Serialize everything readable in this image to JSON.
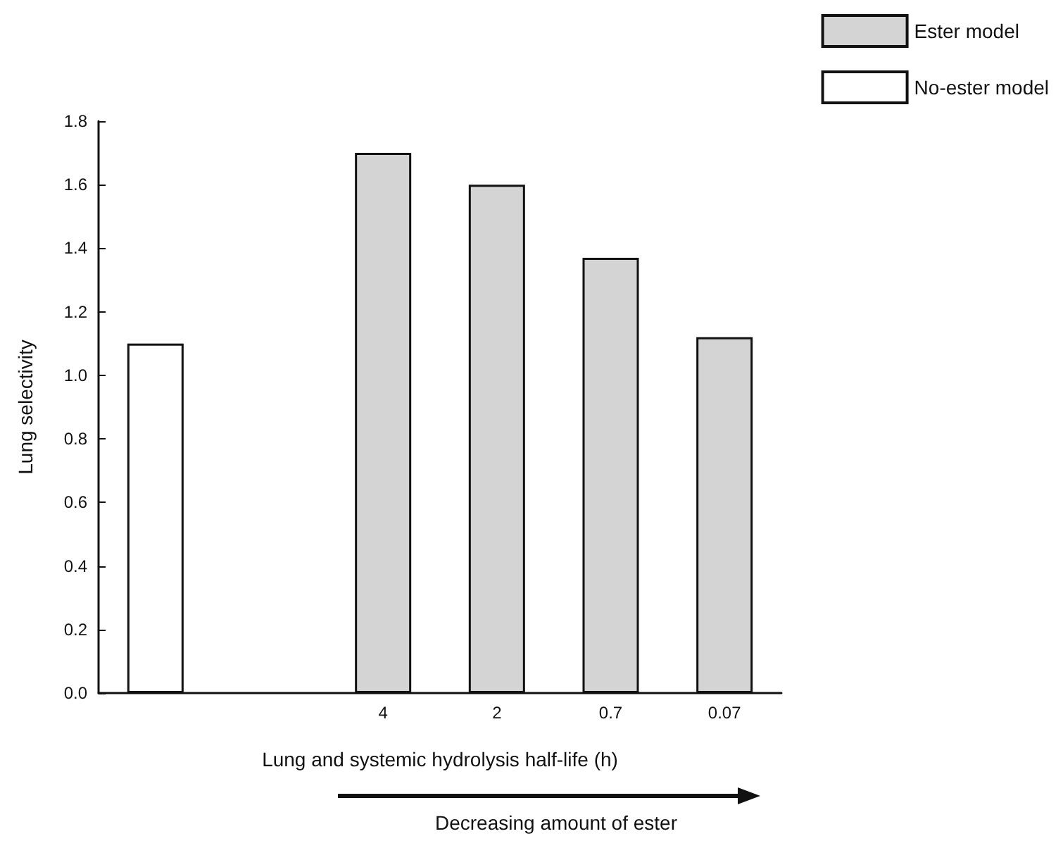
{
  "chart_data": {
    "type": "bar",
    "ylabel": "Lung selectivity",
    "xlabel": "Lung and systemic hydrolysis half-life (h)",
    "categories": [
      null,
      null,
      "4",
      "2",
      "0.7",
      "0.07"
    ],
    "series": [
      {
        "name": "Ester model",
        "color": "#d4d4d4",
        "values": [
          null,
          null,
          1.7,
          1.6,
          1.37,
          1.12
        ]
      },
      {
        "name": "No-ester model",
        "color": "#ffffff",
        "values": [
          1.1,
          null,
          null,
          null,
          null,
          null
        ]
      }
    ],
    "ylim": [
      0,
      1.8
    ],
    "yticks": [
      {
        "value": 0,
        "label": "0.0"
      },
      {
        "value": 0.2,
        "label": "0.2"
      },
      {
        "value": 0.4,
        "label": "0.4"
      },
      {
        "value": 0.6,
        "label": "0.6"
      },
      {
        "value": 0.8,
        "label": "0.8"
      },
      {
        "value": 1,
        "label": "1.0"
      },
      {
        "value": 1.2,
        "label": "1.2"
      },
      {
        "value": 1.4,
        "label": "1.4"
      },
      {
        "value": 1.6,
        "label": "1.6"
      },
      {
        "value": 1.8,
        "label": "1.8"
      }
    ],
    "annotations": [
      "Decreasing amount of ester"
    ],
    "grid": false,
    "legend": "top right"
  }
}
